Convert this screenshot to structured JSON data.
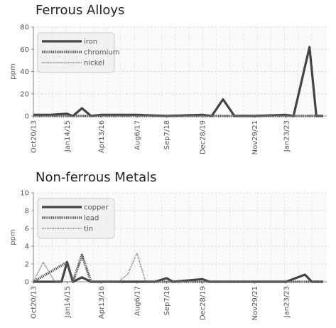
{
  "charts": [
    {
      "title": "Ferrous Alloys",
      "chart_data": {
        "type": "line",
        "title": "Ferrous Alloys",
        "ylabel": "ppm",
        "xlabel": "",
        "ylim": [
          0,
          80
        ],
        "yticks": [
          0,
          20,
          40,
          60,
          80
        ],
        "x": [
          "Oct20/13",
          "Jan14/15",
          "Apr13/16",
          "Aug6/17",
          "Sep7/18",
          "Dec28/19",
          "Nov29/21",
          "Jan23/23"
        ],
        "xtick_labels": [
          "Oct20/13",
          "Jan14/15",
          "Apr13/16",
          "Aug6/17",
          "Sep7/18",
          "Dec28/19",
          "Nov29/21",
          "Jan23/23"
        ],
        "grid": true,
        "legend_position": "top-left",
        "series": [
          {
            "name": "iron",
            "style": "solid",
            "color": "#444444",
            "points": [
              [
                "Oct20/13",
                1
              ],
              [
                "2014-06",
                1
              ],
              [
                "Jan14/15",
                2
              ],
              [
                "2015-04",
                0
              ],
              [
                "2015-08",
                7
              ],
              [
                "2015-12",
                0
              ],
              [
                "Apr13/16",
                1
              ],
              [
                "Aug6/17",
                1
              ],
              [
                "Sep7/18",
                0
              ],
              [
                "Dec28/19",
                1
              ],
              [
                "2020-05",
                0
              ],
              [
                "2020-10",
                15
              ],
              [
                "2021-03",
                0
              ],
              [
                "Nov29/21",
                0
              ],
              [
                "Jan23/23",
                1
              ],
              [
                "2023-05",
                0
              ],
              [
                "2023-12",
                62
              ],
              [
                "2024-03",
                0
              ],
              [
                "2024-06",
                0
              ]
            ]
          },
          {
            "name": "chromium",
            "style": "dotted",
            "color": "#555555",
            "points": [
              [
                "Oct20/13",
                0
              ],
              [
                "Jan14/15",
                0
              ],
              [
                "Apr13/16",
                0
              ],
              [
                "Aug6/17",
                0
              ],
              [
                "Sep7/18",
                0
              ],
              [
                "Dec28/19",
                0
              ],
              [
                "Nov29/21",
                0
              ],
              [
                "Jan23/23",
                0
              ],
              [
                "2024-06",
                0
              ]
            ]
          },
          {
            "name": "nickel",
            "style": "thin-dotted",
            "color": "#777777",
            "points": [
              [
                "Oct20/13",
                0
              ],
              [
                "Jan14/15",
                0
              ],
              [
                "Apr13/16",
                0
              ],
              [
                "Aug6/17",
                0
              ],
              [
                "Sep7/18",
                0
              ],
              [
                "Dec28/19",
                0
              ],
              [
                "Nov29/21",
                0
              ],
              [
                "Jan23/23",
                0
              ],
              [
                "2024-06",
                0
              ]
            ]
          }
        ]
      }
    },
    {
      "title": "Non-ferrous Metals",
      "chart_data": {
        "type": "line",
        "title": "Non-ferrous Metals",
        "ylabel": "ppm",
        "xlabel": "",
        "ylim": [
          0,
          10
        ],
        "yticks": [
          0,
          2,
          4,
          6,
          8,
          10
        ],
        "x": [
          "Oct20/13",
          "Jan14/15",
          "Apr13/16",
          "Aug6/17",
          "Sep7/18",
          "Dec28/19",
          "Nov29/21",
          "Jan23/23"
        ],
        "xtick_labels": [
          "Oct20/13",
          "Jan14/15",
          "Apr13/16",
          "Aug6/17",
          "Sep7/18",
          "Dec28/19",
          "Nov29/21",
          "Jan23/23"
        ],
        "grid": true,
        "legend_position": "top-left",
        "series": [
          {
            "name": "copper",
            "style": "solid",
            "color": "#444444",
            "points": [
              [
                "Oct20/13",
                0
              ],
              [
                "2014-06",
                0
              ],
              [
                "2014-11",
                0
              ],
              [
                "Jan14/15",
                2.2
              ],
              [
                "2015-04",
                0
              ],
              [
                "2015-08",
                0.5
              ],
              [
                "2015-12",
                0
              ],
              [
                "Apr13/16",
                0
              ],
              [
                "Aug6/17",
                0
              ],
              [
                "2018-04",
                0
              ],
              [
                "Sep7/18",
                0.4
              ],
              [
                "2018-12",
                0
              ],
              [
                "Dec28/19",
                0.3
              ],
              [
                "2020-04",
                0
              ],
              [
                "Nov29/21",
                0
              ],
              [
                "Jan23/23",
                0
              ],
              [
                "2023-10",
                0.8
              ],
              [
                "2024-01",
                0
              ],
              [
                "2024-06",
                0
              ]
            ]
          },
          {
            "name": "lead",
            "style": "dotted",
            "color": "#555555",
            "points": [
              [
                "Oct20/13",
                0
              ],
              [
                "Jan14/15",
                2.2
              ],
              [
                "2015-04",
                0
              ],
              [
                "2015-08",
                3
              ],
              [
                "2015-12",
                0
              ],
              [
                "Apr13/16",
                0
              ],
              [
                "Aug6/17",
                0
              ],
              [
                "Sep7/18",
                0
              ],
              [
                "Dec28/19",
                0
              ],
              [
                "Nov29/21",
                0
              ],
              [
                "Jan23/23",
                0
              ],
              [
                "2024-06",
                0
              ]
            ]
          },
          {
            "name": "tin",
            "style": "thin-dotted",
            "color": "#777777",
            "points": [
              [
                "Oct20/13",
                0
              ],
              [
                "2014-03",
                2.2
              ],
              [
                "2014-08",
                0
              ],
              [
                "Jan14/15",
                0
              ],
              [
                "2015-04",
                0
              ],
              [
                "2015-08",
                3
              ],
              [
                "2015-12",
                0
              ],
              [
                "Apr13/16",
                0
              ],
              [
                "2016-12",
                0
              ],
              [
                "2017-04",
                0.8
              ],
              [
                "Aug6/17",
                3.2
              ],
              [
                "2017-12",
                0
              ],
              [
                "Sep7/18",
                0
              ],
              [
                "Dec28/19",
                0
              ],
              [
                "Nov29/21",
                0
              ],
              [
                "Jan23/23",
                0
              ],
              [
                "2024-06",
                0
              ]
            ]
          }
        ]
      }
    }
  ]
}
